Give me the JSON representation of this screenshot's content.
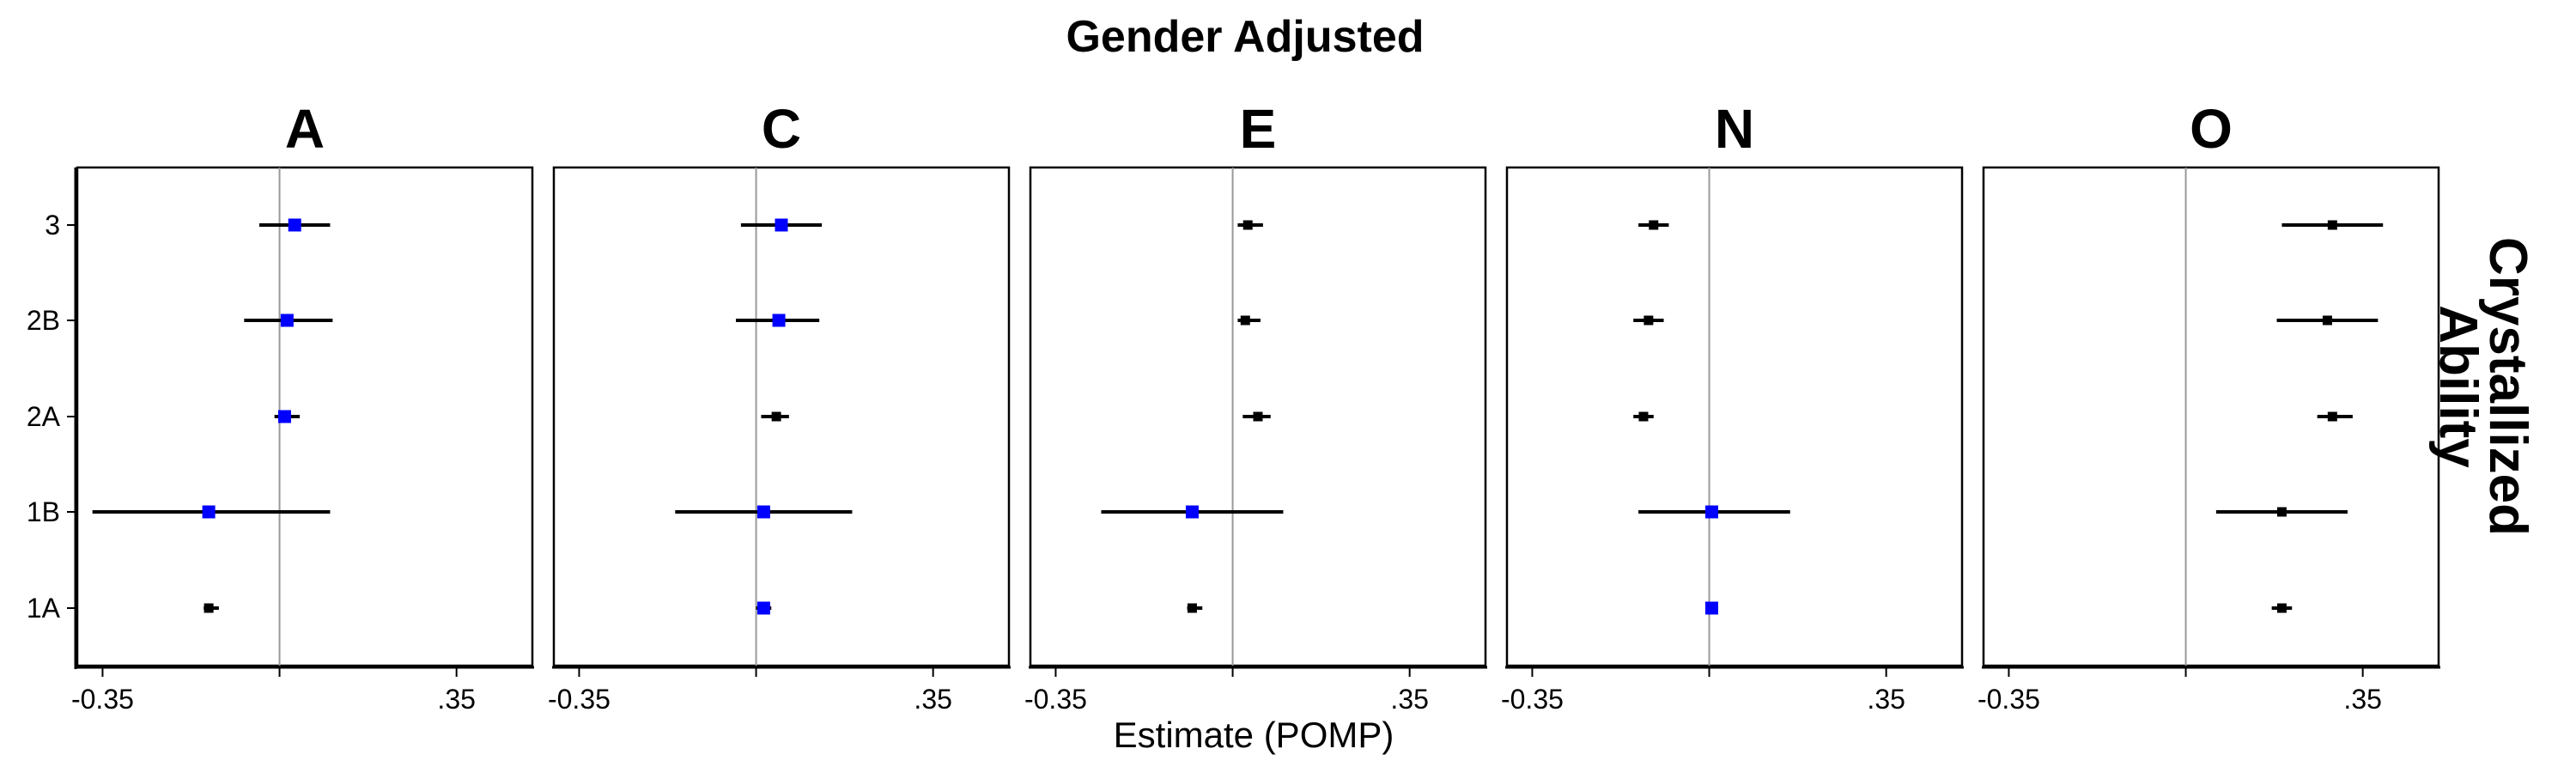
{
  "chart_data": {
    "type": "scatter",
    "subtype": "faceted-coefficient-plot",
    "title": "Gender Adjusted",
    "xlabel": "Estimate (POMP)",
    "strip_label": "Crystallized Ability",
    "strip_label_lines": [
      "Crystallized",
      "Ability"
    ],
    "categories": [
      "1A",
      "1B",
      "2A",
      "2B",
      "3"
    ],
    "xlim": [
      -0.4,
      0.5
    ],
    "x_ticks": [
      -0.35,
      0,
      0.35
    ],
    "x_tick_labels": [
      "-0.35",
      "",
      ".35"
    ],
    "reference_line": 0,
    "colors": {
      "significant": "#0000ff",
      "nonsignificant": "#000000",
      "reference": "#999999"
    },
    "facets": [
      {
        "name": "A",
        "points": [
          {
            "category": "3",
            "estimate": 0.03,
            "lower": -0.04,
            "upper": 0.1,
            "highlight": true
          },
          {
            "category": "2B",
            "estimate": 0.015,
            "lower": -0.07,
            "upper": 0.105,
            "highlight": true
          },
          {
            "category": "2A",
            "estimate": 0.01,
            "lower": -0.01,
            "upper": 0.04,
            "highlight": true
          },
          {
            "category": "1B",
            "estimate": -0.14,
            "lower": -0.37,
            "upper": 0.1,
            "highlight": true
          },
          {
            "category": "1A",
            "estimate": -0.14,
            "lower": -0.15,
            "upper": -0.12,
            "highlight": false
          }
        ]
      },
      {
        "name": "C",
        "points": [
          {
            "category": "3",
            "estimate": 0.05,
            "lower": -0.03,
            "upper": 0.13,
            "highlight": true
          },
          {
            "category": "2B",
            "estimate": 0.045,
            "lower": -0.04,
            "upper": 0.125,
            "highlight": true
          },
          {
            "category": "2A",
            "estimate": 0.04,
            "lower": 0.01,
            "upper": 0.065,
            "highlight": false
          },
          {
            "category": "1B",
            "estimate": 0.015,
            "lower": -0.16,
            "upper": 0.19,
            "highlight": true
          },
          {
            "category": "1A",
            "estimate": 0.015,
            "lower": 0.0,
            "upper": 0.03,
            "highlight": true
          }
        ]
      },
      {
        "name": "E",
        "points": [
          {
            "category": "3",
            "estimate": 0.03,
            "lower": 0.01,
            "upper": 0.06,
            "highlight": false
          },
          {
            "category": "2B",
            "estimate": 0.025,
            "lower": 0.01,
            "upper": 0.055,
            "highlight": false
          },
          {
            "category": "2A",
            "estimate": 0.05,
            "lower": 0.02,
            "upper": 0.075,
            "highlight": false
          },
          {
            "category": "1B",
            "estimate": -0.08,
            "lower": -0.26,
            "upper": 0.1,
            "highlight": true
          },
          {
            "category": "1A",
            "estimate": -0.08,
            "lower": -0.09,
            "upper": -0.06,
            "highlight": false
          }
        ]
      },
      {
        "name": "N",
        "points": [
          {
            "category": "3",
            "estimate": -0.11,
            "lower": -0.14,
            "upper": -0.08,
            "highlight": false
          },
          {
            "category": "2B",
            "estimate": -0.12,
            "lower": -0.15,
            "upper": -0.09,
            "highlight": false
          },
          {
            "category": "2A",
            "estimate": -0.13,
            "lower": -0.15,
            "upper": -0.11,
            "highlight": false
          },
          {
            "category": "1B",
            "estimate": 0.005,
            "lower": -0.14,
            "upper": 0.16,
            "highlight": true
          },
          {
            "category": "1A",
            "estimate": 0.005,
            "lower": 0.0,
            "upper": 0.01,
            "highlight": true
          }
        ]
      },
      {
        "name": "O",
        "points": [
          {
            "category": "3",
            "estimate": 0.29,
            "lower": 0.19,
            "upper": 0.39,
            "highlight": false
          },
          {
            "category": "2B",
            "estimate": 0.28,
            "lower": 0.18,
            "upper": 0.38,
            "highlight": false
          },
          {
            "category": "2A",
            "estimate": 0.29,
            "lower": 0.26,
            "upper": 0.33,
            "highlight": false
          },
          {
            "category": "1B",
            "estimate": 0.19,
            "lower": 0.06,
            "upper": 0.32,
            "highlight": false
          },
          {
            "category": "1A",
            "estimate": 0.19,
            "lower": 0.17,
            "upper": 0.21,
            "highlight": false
          }
        ]
      }
    ]
  }
}
